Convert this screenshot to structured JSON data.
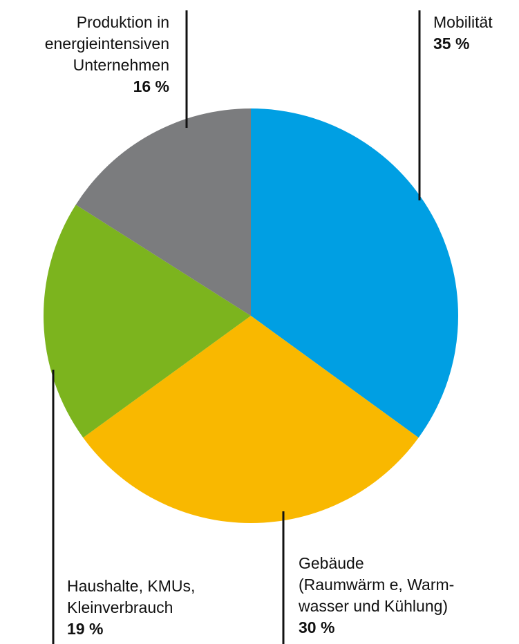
{
  "chart_data": {
    "type": "pie",
    "title": "",
    "slices": [
      {
        "label_lines": [
          "Mobilität"
        ],
        "value": 35,
        "value_label": "35 %",
        "color": "#009FE3"
      },
      {
        "label_lines": [
          "Gebäude",
          "(Raumwärm e, Warm-",
          "wasser und Kühlung)"
        ],
        "value": 30,
        "value_label": "30 %",
        "color": "#F9B800"
      },
      {
        "label_lines": [
          "Haushalte, KMUs,",
          "Kleinverbrauch"
        ],
        "value": 19,
        "value_label": "19 %",
        "color": "#7CB41E"
      },
      {
        "label_lines": [
          "Produktion in",
          "energieintensiven",
          "Unternehmen"
        ],
        "value": 16,
        "value_label": "16 %",
        "color": "#7B7C7E"
      }
    ]
  }
}
